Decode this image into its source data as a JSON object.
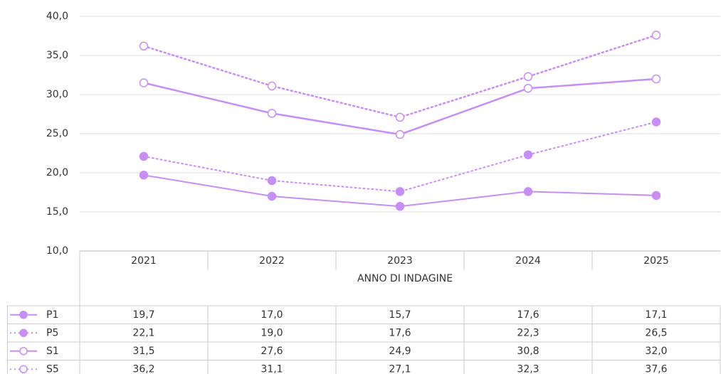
{
  "chart_data": {
    "type": "line",
    "x_label": "ANNO DI INDAGINE",
    "categories": [
      "2021",
      "2022",
      "2023",
      "2024",
      "2025"
    ],
    "ylim": [
      10,
      40
    ],
    "yticks": [
      {
        "value": 10,
        "label": "10,0"
      },
      {
        "value": 15,
        "label": "15,0"
      },
      {
        "value": 20,
        "label": "20,0"
      },
      {
        "value": 25,
        "label": "25,0"
      },
      {
        "value": 30,
        "label": "30,0"
      },
      {
        "value": 35,
        "label": "35,0"
      },
      {
        "value": 40,
        "label": "40,0"
      }
    ],
    "grid": true,
    "series": [
      {
        "name": "P1",
        "color": "#c78ef5",
        "line_style": "solid",
        "marker": "filled",
        "values": [
          19.7,
          17.0,
          15.7,
          17.6,
          17.1
        ],
        "value_labels": [
          "19,7",
          "17,0",
          "15,7",
          "17,6",
          "17,1"
        ]
      },
      {
        "name": "P5",
        "color": "#c78ef5",
        "line_style": "dotted",
        "marker": "filled",
        "values": [
          22.1,
          19.0,
          17.6,
          22.3,
          26.5
        ],
        "value_labels": [
          "22,1",
          "19,0",
          "17,6",
          "22,3",
          "26,5"
        ]
      },
      {
        "name": "S1",
        "color": "#c78ef5",
        "line_style": "solid",
        "marker": "open",
        "values": [
          31.5,
          27.6,
          24.9,
          30.8,
          32.0
        ],
        "value_labels": [
          "31,5",
          "27,6",
          "24,9",
          "30,8",
          "32,0"
        ]
      },
      {
        "name": "S5",
        "color": "#c78ef5",
        "line_style": "dotted",
        "marker": "open",
        "values": [
          36.2,
          31.1,
          27.1,
          32.3,
          37.6
        ],
        "value_labels": [
          "36,2",
          "31,1",
          "27,1",
          "32,3",
          "37,6"
        ]
      }
    ]
  }
}
